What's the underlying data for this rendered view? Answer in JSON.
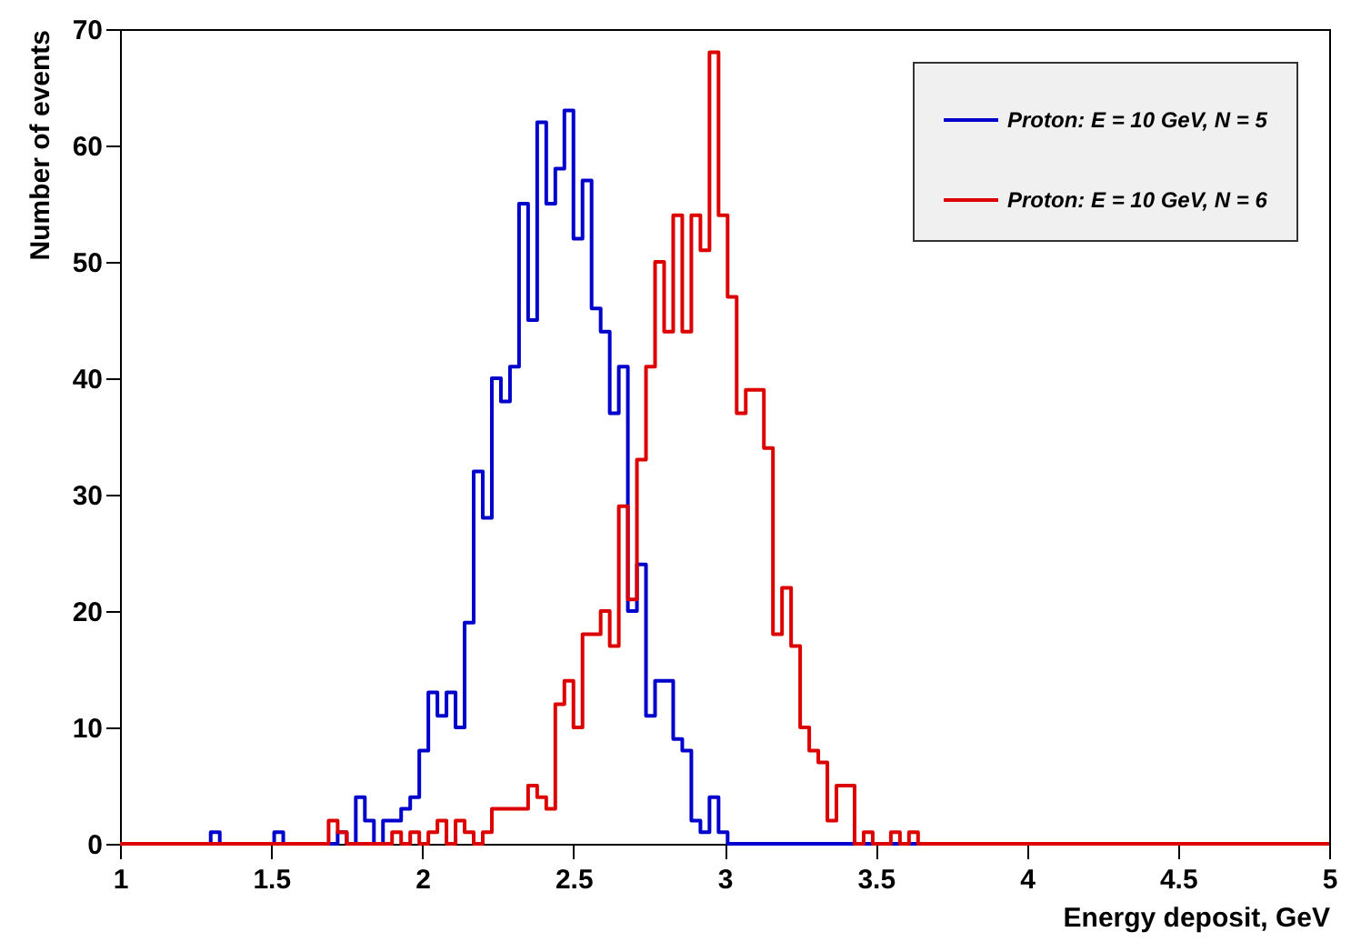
{
  "chart_data": {
    "type": "histogram",
    "xlabel": "Energy deposit, GeV",
    "ylabel": "Number of events",
    "bins": [
      1,
      1.03,
      1.06,
      1.09,
      1.12,
      1.15,
      1.18,
      1.21,
      1.24,
      1.27,
      1.3,
      1.33,
      1.36,
      1.39,
      1.42,
      1.45,
      1.48,
      1.51,
      1.54,
      1.57,
      1.6,
      1.63,
      1.66,
      1.69,
      1.72,
      1.75,
      1.78,
      1.81,
      1.84,
      1.87,
      1.9,
      1.93,
      1.96,
      1.99,
      2.02,
      2.05,
      2.08,
      2.11,
      2.14,
      2.17,
      2.2,
      2.23,
      2.26,
      2.29,
      2.32,
      2.35,
      2.38,
      2.41,
      2.44,
      2.47,
      2.5,
      2.53,
      2.56,
      2.59,
      2.62,
      2.65,
      2.68,
      2.71,
      2.74,
      2.77,
      2.8,
      2.83,
      2.86,
      2.89,
      2.92,
      2.95,
      2.98,
      3.01,
      3.04,
      3.07,
      3.1,
      3.13,
      3.16,
      3.19,
      3.22,
      3.25,
      3.28,
      3.31,
      3.34,
      3.37,
      3.4,
      3.43,
      3.46,
      3.49,
      3.52,
      3.55,
      3.58,
      3.61,
      3.64,
      3.67,
      3.7,
      5
    ],
    "series": [
      {
        "name": "Proton: E = 10 GeV, N = 5",
        "color": "#0000cc",
        "values": [
          0,
          0,
          0,
          0,
          0,
          0,
          0,
          0,
          0,
          0,
          1,
          0,
          0,
          0,
          0,
          0,
          0,
          1,
          0,
          0,
          0,
          0,
          0,
          0,
          1,
          0,
          4,
          2,
          0,
          2,
          2,
          3,
          4,
          8,
          13,
          11,
          13,
          10,
          19,
          32,
          28,
          40,
          38,
          41,
          55,
          45,
          62,
          55,
          58,
          63,
          52,
          57,
          46,
          44,
          37,
          41,
          20,
          24,
          11,
          14,
          14,
          9,
          8,
          2,
          1,
          4,
          1,
          0,
          0,
          0,
          0,
          0,
          0,
          0,
          0,
          0,
          0,
          0,
          0,
          0,
          0,
          0,
          0,
          0,
          0,
          0,
          0,
          0,
          0,
          0,
          0
        ]
      },
      {
        "name": "Proton: E = 10 GeV, N = 6",
        "color": "#dd0000",
        "values": [
          0,
          0,
          0,
          0,
          0,
          0,
          0,
          0,
          0,
          0,
          0,
          0,
          0,
          0,
          0,
          0,
          0,
          0,
          0,
          0,
          0,
          0,
          0,
          2,
          1,
          0,
          0,
          0,
          0,
          0,
          1,
          0,
          1,
          0,
          1,
          2,
          0,
          2,
          1,
          0,
          1,
          3,
          3,
          3,
          3,
          5,
          4,
          3,
          12,
          14,
          10,
          18,
          18,
          20,
          17,
          29,
          21,
          33,
          41,
          50,
          44,
          54,
          44,
          54,
          51,
          68,
          54,
          47,
          37,
          39,
          39,
          34,
          18,
          22,
          17,
          10,
          8,
          7,
          2,
          5,
          5,
          0,
          1,
          0,
          0,
          1,
          0,
          1,
          0,
          0,
          0
        ]
      }
    ],
    "xlim": [
      1,
      5
    ],
    "xticks": [
      1,
      1.5,
      2,
      2.5,
      3,
      3.5,
      4,
      4.5,
      5
    ],
    "ylim": [
      0,
      70
    ],
    "yticks": [
      0,
      10,
      20,
      30,
      40,
      50,
      60,
      70
    ],
    "legend": "top right"
  }
}
